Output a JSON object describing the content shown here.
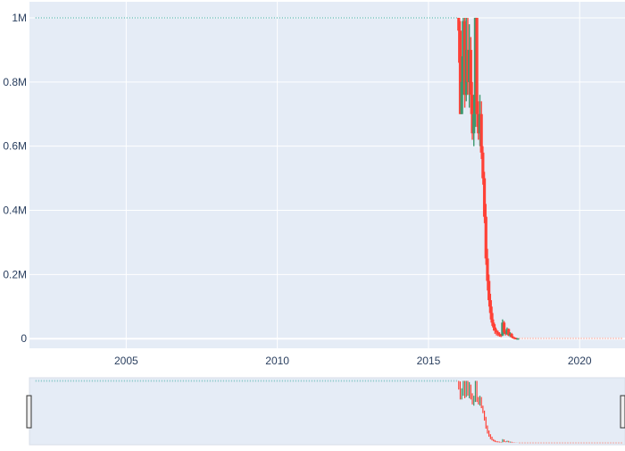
{
  "chart_data": {
    "type": "line",
    "title": "",
    "xlabel": "",
    "ylabel": "",
    "x_range": [
      2001.8,
      2021.5
    ],
    "ylim": [
      -30000,
      1050000
    ],
    "grid": true,
    "legend": "none",
    "x_ticks": [
      {
        "value": 2005,
        "label": "2005"
      },
      {
        "value": 2010,
        "label": "2010"
      },
      {
        "value": 2015,
        "label": "2015"
      },
      {
        "value": 2020,
        "label": "2020"
      }
    ],
    "y_ticks": [
      {
        "value": 0,
        "label": "0"
      },
      {
        "value": 200000,
        "label": "0.2M"
      },
      {
        "value": 400000,
        "label": "0.4M"
      },
      {
        "value": 600000,
        "label": "0.6M"
      },
      {
        "value": 800000,
        "label": "0.8M"
      },
      {
        "value": 1000000,
        "label": "1M"
      }
    ],
    "colors": {
      "increasing": "#3d9970",
      "decreasing": "#ff4136",
      "flat": "#7fc4c4",
      "plot_bg": "#e5ecf6",
      "grid": "#ffffff"
    },
    "flat_segment": {
      "x_start": 2002.0,
      "x_end": 2016.0,
      "value": 1000000
    },
    "tail_segment": {
      "x_start": 2018.0,
      "x_end": 2021.4,
      "value": 1000
    },
    "series": [
      {
        "x": 2016.0,
        "open": 1000000,
        "close": 960000,
        "high": 1000000,
        "low": 860000
      },
      {
        "x": 2016.05,
        "open": 960000,
        "close": 700000,
        "high": 990000,
        "low": 700000
      },
      {
        "x": 2016.1,
        "open": 700000,
        "close": 800000,
        "high": 880000,
        "low": 700000
      },
      {
        "x": 2016.15,
        "open": 800000,
        "close": 990000,
        "high": 1000000,
        "low": 760000
      },
      {
        "x": 2016.2,
        "open": 990000,
        "close": 760000,
        "high": 1000000,
        "low": 720000
      },
      {
        "x": 2016.25,
        "open": 760000,
        "close": 900000,
        "high": 1000000,
        "low": 740000
      },
      {
        "x": 2016.3,
        "open": 900000,
        "close": 800000,
        "high": 1000000,
        "low": 760000
      },
      {
        "x": 2016.35,
        "open": 800000,
        "close": 900000,
        "high": 980000,
        "low": 720000
      },
      {
        "x": 2016.4,
        "open": 900000,
        "close": 760000,
        "high": 940000,
        "low": 700000
      },
      {
        "x": 2016.45,
        "open": 760000,
        "close": 640000,
        "high": 800000,
        "low": 620000
      },
      {
        "x": 2016.5,
        "open": 640000,
        "close": 700000,
        "high": 760000,
        "low": 600000
      },
      {
        "x": 2016.55,
        "open": 700000,
        "close": 1000000,
        "high": 1000000,
        "low": 660000
      },
      {
        "x": 2016.6,
        "open": 1000000,
        "close": 700000,
        "high": 1000000,
        "low": 660000
      },
      {
        "x": 2016.65,
        "open": 700000,
        "close": 640000,
        "high": 740000,
        "low": 620000
      },
      {
        "x": 2016.7,
        "open": 640000,
        "close": 700000,
        "high": 760000,
        "low": 600000
      },
      {
        "x": 2016.75,
        "open": 700000,
        "close": 580000,
        "high": 740000,
        "low": 560000
      },
      {
        "x": 2016.8,
        "open": 580000,
        "close": 500000,
        "high": 600000,
        "low": 480000
      },
      {
        "x": 2016.85,
        "open": 500000,
        "close": 380000,
        "high": 520000,
        "low": 360000
      },
      {
        "x": 2016.9,
        "open": 380000,
        "close": 250000,
        "high": 420000,
        "low": 230000
      },
      {
        "x": 2016.95,
        "open": 250000,
        "close": 180000,
        "high": 280000,
        "low": 150000
      },
      {
        "x": 2017.0,
        "open": 180000,
        "close": 120000,
        "high": 200000,
        "low": 100000
      },
      {
        "x": 2017.05,
        "open": 120000,
        "close": 80000,
        "high": 140000,
        "low": 60000
      },
      {
        "x": 2017.1,
        "open": 80000,
        "close": 50000,
        "high": 100000,
        "low": 40000
      },
      {
        "x": 2017.15,
        "open": 50000,
        "close": 35000,
        "high": 60000,
        "low": 25000
      },
      {
        "x": 2017.2,
        "open": 35000,
        "close": 25000,
        "high": 45000,
        "low": 15000
      },
      {
        "x": 2017.25,
        "open": 25000,
        "close": 20000,
        "high": 30000,
        "low": 10000
      },
      {
        "x": 2017.3,
        "open": 20000,
        "close": 15000,
        "high": 25000,
        "low": 8000
      },
      {
        "x": 2017.35,
        "open": 15000,
        "close": 12000,
        "high": 20000,
        "low": 6000
      },
      {
        "x": 2017.4,
        "open": 12000,
        "close": 10000,
        "high": 15000,
        "low": 5000
      },
      {
        "x": 2017.45,
        "open": 10000,
        "close": 50000,
        "high": 60000,
        "low": 8000
      },
      {
        "x": 2017.5,
        "open": 50000,
        "close": 20000,
        "high": 55000,
        "low": 15000
      },
      {
        "x": 2017.55,
        "open": 20000,
        "close": 15000,
        "high": 25000,
        "low": 10000
      },
      {
        "x": 2017.6,
        "open": 15000,
        "close": 30000,
        "high": 35000,
        "low": 12000
      },
      {
        "x": 2017.65,
        "open": 30000,
        "close": 10000,
        "high": 32000,
        "low": 8000
      },
      {
        "x": 2017.7,
        "open": 10000,
        "close": 15000,
        "high": 20000,
        "low": 5000
      },
      {
        "x": 2017.75,
        "open": 15000,
        "close": 5000,
        "high": 18000,
        "low": 3000
      },
      {
        "x": 2017.8,
        "open": 5000,
        "close": 3000,
        "high": 8000,
        "low": 2000
      },
      {
        "x": 2017.85,
        "open": 3000,
        "close": 2000,
        "high": 5000,
        "low": 1000
      },
      {
        "x": 2017.9,
        "open": 2000,
        "close": 1000,
        "high": 3000,
        "low": 500
      },
      {
        "x": 2017.95,
        "open": 1000,
        "close": 1000,
        "high": 2000,
        "low": 500
      }
    ]
  }
}
